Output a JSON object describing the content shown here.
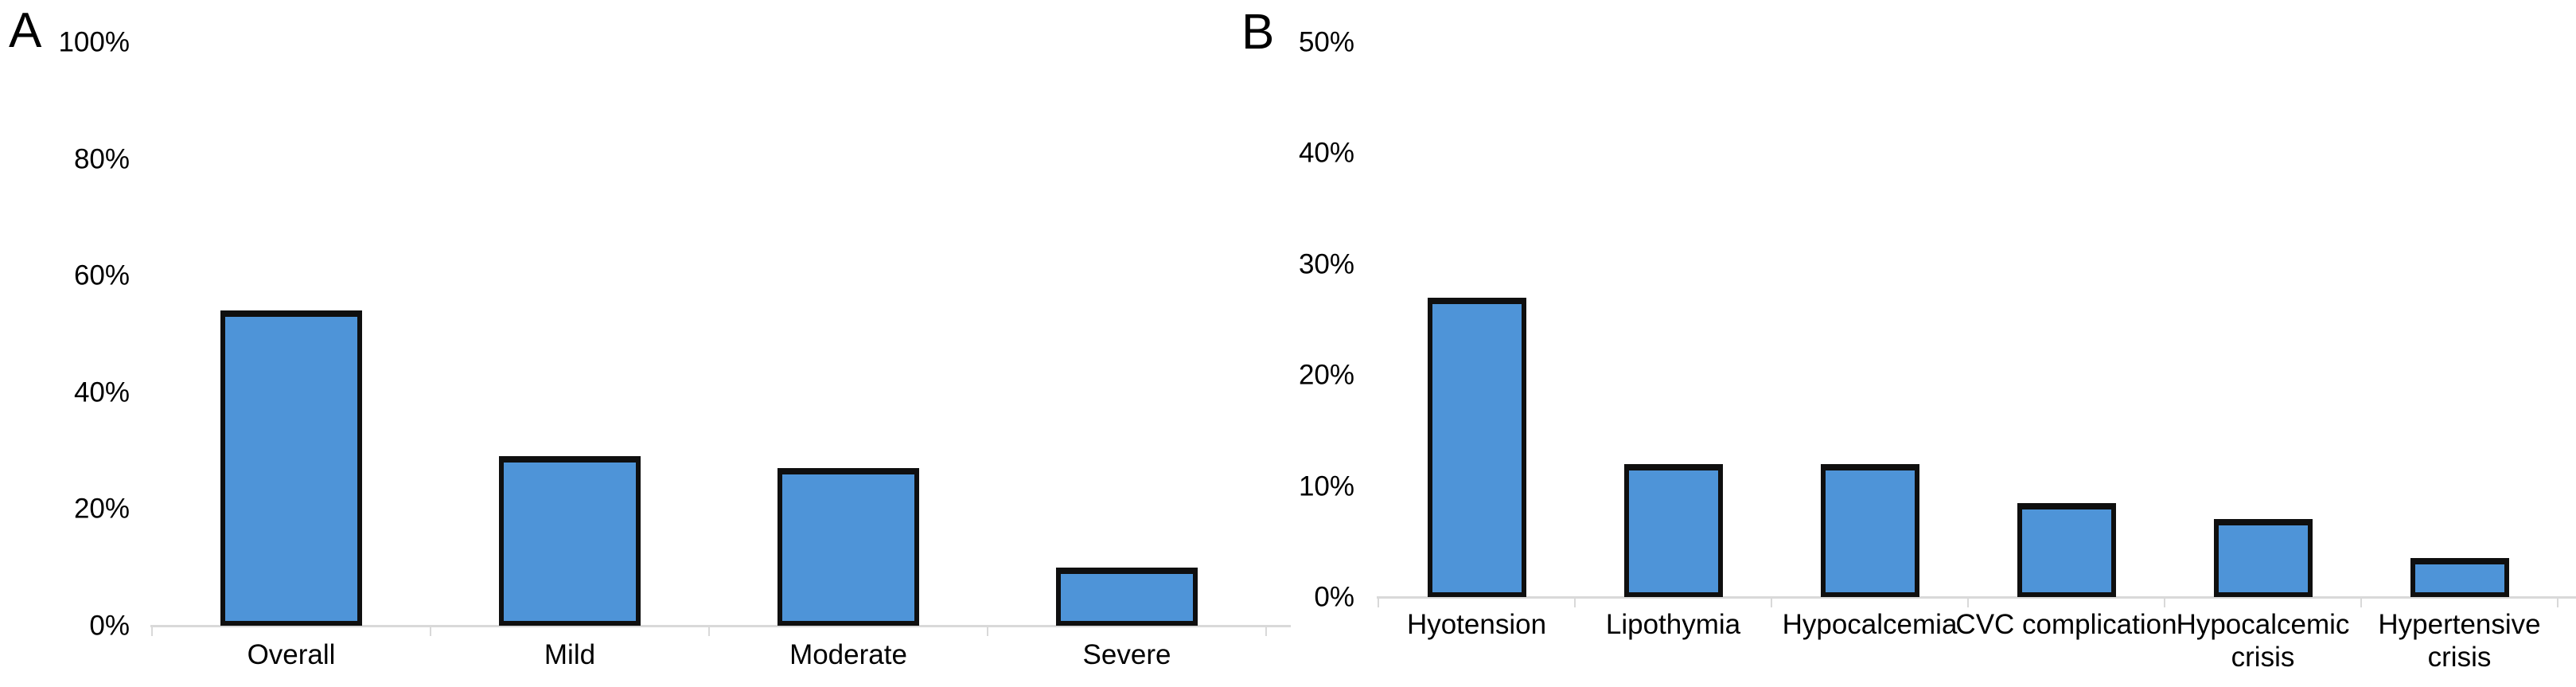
{
  "figure": {
    "background_color": "#ffffff",
    "bar_fill_color": "#4E94D8",
    "bar_outline_color": "#0f0f0f",
    "axis_color": "#d9d9d9",
    "text_color": "#000000"
  },
  "chart_data": [
    {
      "type": "bar",
      "panel_label": "A",
      "title": "",
      "xlabel": "",
      "ylabel": "",
      "categories": [
        "Overall",
        "Mild",
        "Moderate",
        "Severe"
      ],
      "values": [
        54,
        29,
        27,
        10
      ],
      "unit": "%",
      "ylim": [
        0,
        100
      ],
      "ytick_step": 20,
      "ytick_labels": [
        "0%",
        "20%",
        "40%",
        "60%",
        "80%",
        "100%"
      ],
      "grid": false,
      "legend": null
    },
    {
      "type": "bar",
      "panel_label": "B",
      "title": "",
      "xlabel": "",
      "ylabel": "",
      "categories": [
        "Hyotension",
        "Lipothymia",
        "Hypocalcemia",
        "CVC complication",
        "Hypocalcemic crisis",
        "Hypertensive crisis"
      ],
      "values": [
        27,
        12,
        12,
        8.5,
        7,
        3.5
      ],
      "unit": "%",
      "ylim": [
        0,
        50
      ],
      "ytick_step": 10,
      "ytick_labels": [
        "0%",
        "10%",
        "20%",
        "30%",
        "40%",
        "50%"
      ],
      "grid": false,
      "legend": null
    }
  ]
}
